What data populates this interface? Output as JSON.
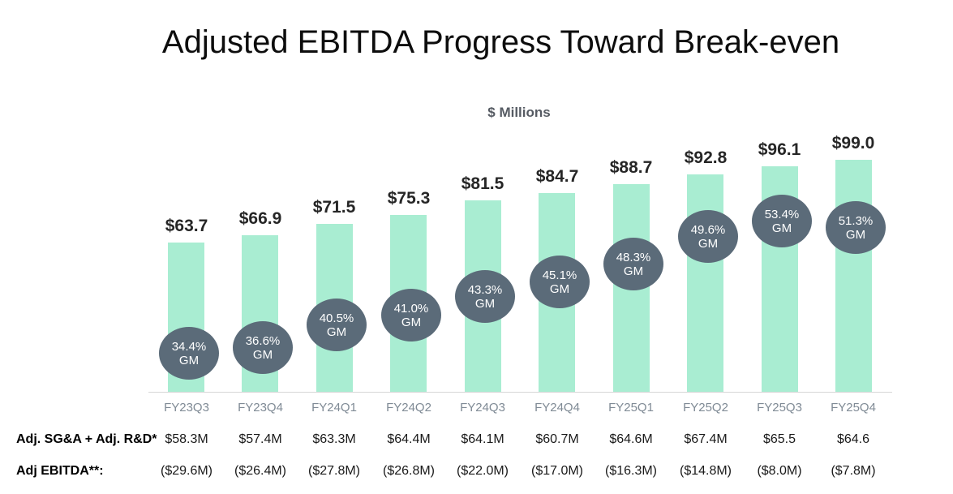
{
  "title": "Adjusted EBITDA Progress Toward Break-even",
  "subtitle": "$ Millions",
  "chart_data": {
    "type": "bar",
    "title": "$ Millions",
    "categories": [
      "FY23Q3",
      "FY23Q4",
      "FY24Q1",
      "FY24Q2",
      "FY24Q3",
      "FY24Q4",
      "FY25Q1",
      "FY25Q2",
      "FY25Q3",
      "FY25Q4"
    ],
    "series": [
      {
        "name": "quarterly-dollars-millions",
        "values": [
          63.7,
          66.9,
          71.5,
          75.3,
          81.5,
          84.7,
          88.7,
          92.8,
          96.1,
          99.0
        ],
        "labels": [
          "$63.7",
          "$66.9",
          "$71.5",
          "$75.3",
          "$81.5",
          "$84.7",
          "$88.7",
          "$92.8",
          "$96.1",
          "$99.0"
        ]
      },
      {
        "name": "gross-margin-percent",
        "values": [
          34.4,
          36.6,
          40.5,
          41.0,
          43.3,
          45.1,
          48.3,
          49.6,
          53.4,
          51.3
        ],
        "labels": [
          "34.4%",
          "36.6%",
          "40.5%",
          "41.0%",
          "43.3%",
          "45.1%",
          "48.3%",
          "49.6%",
          "53.4%",
          "51.3%"
        ],
        "unit_label": "GM"
      }
    ],
    "ylim": [
      0,
      105
    ],
    "legend": "none",
    "grid": "off"
  },
  "table": {
    "rows": [
      {
        "label": "Adj. SG&A + Adj. R&D*",
        "values": [
          "$58.3M",
          "$57.4M",
          "$63.3M",
          "$64.4M",
          "$64.1M",
          "$60.7M",
          "$64.6M",
          "$67.4M",
          "$65.5",
          "$64.6"
        ]
      },
      {
        "label": "Adj EBITDA**:",
        "values": [
          "($29.6M)",
          "($26.4M)",
          "($27.8M)",
          "($26.8M)",
          "($22.0M)",
          "($17.0M)",
          "($16.3M)",
          "($14.8M)",
          "($8.0M)",
          "($7.8M)"
        ]
      }
    ]
  },
  "colors": {
    "bar": "#a9edd2",
    "gm_circle": "#5b6b79",
    "axis_line": "#d6d6d6",
    "category_label": "#7f8a95",
    "bar_label": "#262626",
    "subtitle": "#565b63",
    "title": "#0d0d0d",
    "table_text": "#1a1a1a"
  }
}
